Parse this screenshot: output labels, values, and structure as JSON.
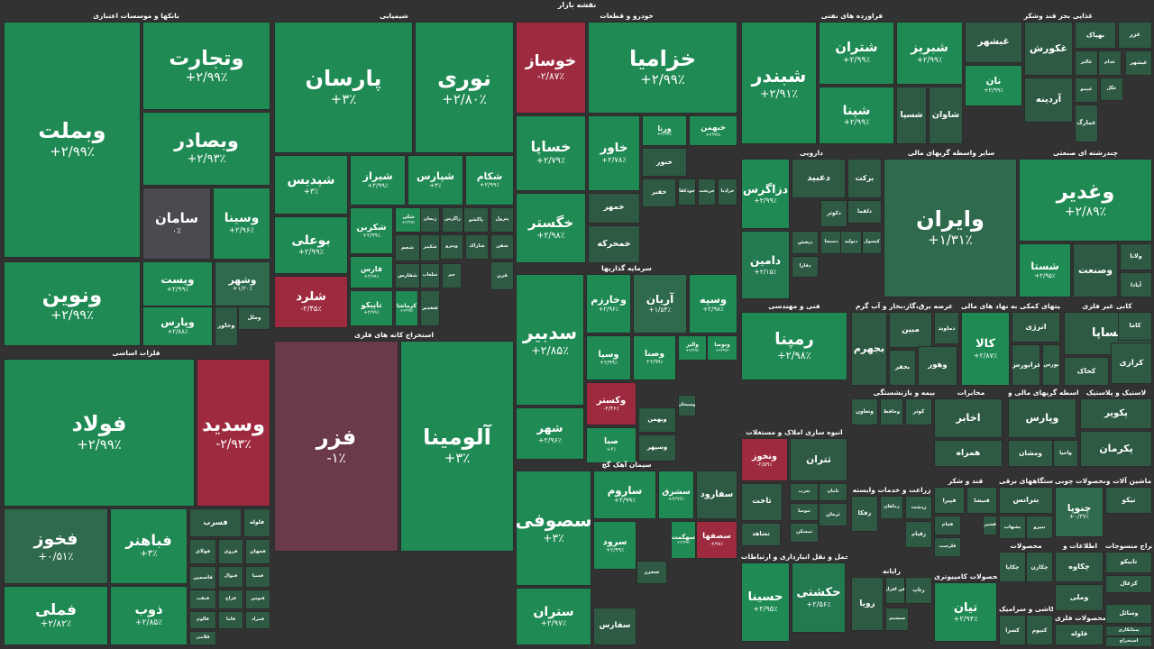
{
  "page": {
    "title": "نقشه بازار"
  },
  "colors": {
    "up_strong": "#1f8a54",
    "up_mid": "#237a50",
    "up_weak": "#2f6a4d",
    "flat": "#4a4a50",
    "down_weak": "#6b3a48",
    "down_strong": "#9e2a40",
    "empty": "#2e5a44"
  },
  "chart_data": {
    "type": "treemap",
    "title": "نقشه بازار",
    "value_unit": "%",
    "sectors": [
      {
        "name": "بانکها و موسسات اعتباری",
        "items": [
          {
            "symbol": "وبملت",
            "change": "+۲/۹۹٪"
          },
          {
            "symbol": "وتجارت",
            "change": "+۲/۹۹٪"
          },
          {
            "symbol": "وبصادر",
            "change": "+۲/۹۳٪"
          },
          {
            "symbol": "سامان",
            "change": "۰٪"
          },
          {
            "symbol": "وسینا",
            "change": "+۲/۹۶٪"
          },
          {
            "symbol": "ونوین",
            "change": "+۲/۹۹٪"
          },
          {
            "symbol": "ویست",
            "change": "+۲/۹۹٪"
          },
          {
            "symbol": "وشهر",
            "change": "+۱/۲۰٪"
          },
          {
            "symbol": "وپارس",
            "change": "+۲/۸۸٪"
          },
          {
            "symbol": "وخاور",
            "change": ""
          },
          {
            "symbol": "وملل",
            "change": ""
          }
        ]
      },
      {
        "name": "شیمیایی",
        "items": [
          {
            "symbol": "پارسان",
            "change": "+۳٪"
          },
          {
            "symbol": "نوری",
            "change": "+۲/۸۰٪"
          },
          {
            "symbol": "شپدیس",
            "change": "+۳٪"
          },
          {
            "symbol": "شیراز",
            "change": "+۲/۹۹٪"
          },
          {
            "symbol": "شپارس",
            "change": "+۳٪"
          },
          {
            "symbol": "شکام",
            "change": "+۲/۹۹٪"
          },
          {
            "symbol": "بوعلی",
            "change": "+۲/۹۹٪"
          },
          {
            "symbol": "شکربن",
            "change": "+۲/۹۹٪"
          },
          {
            "symbol": "شلی",
            "change": "+۲/۹۹٪"
          },
          {
            "symbol": "شلرد",
            "change": "-۲/۴۵٪"
          },
          {
            "symbol": "فارس",
            "change": "+۲/۹۹٪"
          },
          {
            "symbol": "تاپیکو",
            "change": "+۲/۹۹٪"
          },
          {
            "symbol": "کرماشا",
            "change": "+۲/۹۹٪"
          },
          {
            "symbol": "شغدیر",
            "change": ""
          },
          {
            "symbol": "شجم",
            "change": ""
          },
          {
            "symbol": "شفارس",
            "change": ""
          },
          {
            "symbol": "شلعاب",
            "change": ""
          },
          {
            "symbol": "شکبیر",
            "change": ""
          },
          {
            "symbol": "جم",
            "change": ""
          },
          {
            "symbol": "زاگرس",
            "change": ""
          },
          {
            "symbol": "وینرو",
            "change": ""
          },
          {
            "symbol": "پاکشو",
            "change": ""
          },
          {
            "symbol": "پترول",
            "change": ""
          },
          {
            "symbol": "شاراک",
            "change": ""
          },
          {
            "symbol": "شفن",
            "change": ""
          },
          {
            "symbol": "قرن",
            "change": ""
          },
          {
            "symbol": "زنجان",
            "change": ""
          }
        ]
      },
      {
        "name": "استخراج کانه های فلزی",
        "items": [
          {
            "symbol": "فزر",
            "change": "-۱٪"
          },
          {
            "symbol": "آلومینا",
            "change": "+۳٪"
          }
        ]
      },
      {
        "name": "فلزات اساسی",
        "items": [
          {
            "symbol": "فولاد",
            "change": "+۲/۹۹٪"
          },
          {
            "symbol": "وسدید",
            "change": "-۲/۹۳٪"
          },
          {
            "symbol": "فخوز",
            "change": "+۰/۵۱٪"
          },
          {
            "symbol": "فباهنر",
            "change": "+۳٪"
          },
          {
            "symbol": "فملی",
            "change": "+۲/۸۲٪"
          },
          {
            "symbol": "ذوب",
            "change": "+۲/۸۵٪"
          },
          {
            "symbol": "فسرب",
            "change": ""
          },
          {
            "symbol": "فلوله",
            "change": ""
          },
          {
            "symbol": "فولای",
            "change": ""
          },
          {
            "symbol": "فروی",
            "change": ""
          },
          {
            "symbol": "فجهان",
            "change": ""
          },
          {
            "symbol": "فاسمین",
            "change": ""
          },
          {
            "symbol": "فنوال",
            "change": ""
          },
          {
            "symbol": "فسپا",
            "change": ""
          },
          {
            "symbol": "فنفت",
            "change": ""
          },
          {
            "symbol": "فزاخ",
            "change": ""
          },
          {
            "symbol": "فتوس",
            "change": ""
          },
          {
            "symbol": "فالوم",
            "change": ""
          },
          {
            "symbol": "فاما",
            "change": ""
          },
          {
            "symbol": "فمراد",
            "change": ""
          },
          {
            "symbol": "فلامی",
            "change": ""
          }
        ]
      },
      {
        "name": "خودرو و قطعات",
        "items": [
          {
            "symbol": "خوساز",
            "change": "-۲/۸۷٪"
          },
          {
            "symbol": "خزامیا",
            "change": "+۲/۹۹٪"
          },
          {
            "symbol": "خساپا",
            "change": "+۲/۷۹٪"
          },
          {
            "symbol": "خاور",
            "change": "+۲/۷۸٪"
          },
          {
            "symbol": "ورنا",
            "change": "+۲/۹۹٪"
          },
          {
            "symbol": "خبهمن",
            "change": "+۲/۹۹٪"
          },
          {
            "symbol": "خگستر",
            "change": "+۲/۹۸٪"
          },
          {
            "symbol": "خنور",
            "change": ""
          },
          {
            "symbol": "خمهر",
            "change": ""
          },
          {
            "symbol": "خمحرکه",
            "change": ""
          },
          {
            "symbol": "خفنر",
            "change": ""
          },
          {
            "symbol": "خودکفا",
            "change": ""
          },
          {
            "symbol": "خریخت",
            "change": ""
          },
          {
            "symbol": "خرادیا",
            "change": ""
          }
        ]
      },
      {
        "name": "سرمایه گذاریها",
        "items": [
          {
            "symbol": "سدبیر",
            "change": "+۲/۸۵٪"
          },
          {
            "symbol": "وخارزم",
            "change": "+۲/۹۶٪"
          },
          {
            "symbol": "آریان",
            "change": "+۱/۵۴٪"
          },
          {
            "symbol": "وسپه",
            "change": "+۲/۹۸٪"
          },
          {
            "symbol": "شهر",
            "change": "+۲/۹۶٪"
          },
          {
            "symbol": "وسپا",
            "change": "+۲/۹۹٪"
          },
          {
            "symbol": "وصنا",
            "change": "+۲/۹۹٪"
          },
          {
            "symbol": "والبر",
            "change": "+۲/۹۹٪"
          },
          {
            "symbol": "وتوصا",
            "change": "+۲/۹۹٪"
          },
          {
            "symbol": "وکستر",
            "change": "-۲/۴۶٪"
          },
          {
            "symbol": "صبا",
            "change": "+۳٪"
          },
          {
            "symbol": "وسبحان",
            "change": ""
          },
          {
            "symbol": "وبهمن",
            "change": ""
          },
          {
            "symbol": "وسپهر",
            "change": ""
          }
        ]
      },
      {
        "name": "سیمان آهک گچ",
        "items": [
          {
            "symbol": "سصوفی",
            "change": "+۳٪"
          },
          {
            "symbol": "ساروم",
            "change": "+۲/۹۹٪"
          },
          {
            "symbol": "سشرق",
            "change": "+۲/۹۹٪"
          },
          {
            "symbol": "سفارود",
            "change": ""
          },
          {
            "symbol": "سصفها",
            "change": "-۲/۹۷٪"
          },
          {
            "symbol": "سرود",
            "change": "+۲/۹۹٪"
          },
          {
            "symbol": "سهگمت",
            "change": "+۲/۹۹٪"
          },
          {
            "symbol": "ستران",
            "change": "+۲/۹۷٪"
          },
          {
            "symbol": "سخزر",
            "change": ""
          },
          {
            "symbol": "سفارس",
            "change": ""
          }
        ]
      },
      {
        "name": "فراورده های نفتی",
        "items": [
          {
            "symbol": "شبندر",
            "change": "+۲/۹۱٪"
          },
          {
            "symbol": "شتران",
            "change": "+۲/۹۹٪"
          },
          {
            "symbol": "شبریز",
            "change": "+۲/۹۹٪"
          },
          {
            "symbol": "شپنا",
            "change": "+۲/۹۹٪"
          },
          {
            "symbol": "شسپا",
            "change": ""
          },
          {
            "symbol": "شاوان",
            "change": ""
          }
        ]
      },
      {
        "name": "غذایی بجز قند وشکر",
        "items": [
          {
            "symbol": "غبشهر",
            "change": ""
          },
          {
            "symbol": "غکورش",
            "change": ""
          },
          {
            "symbol": "بهپاک",
            "change": ""
          },
          {
            "symbol": "غزر",
            "change": ""
          },
          {
            "symbol": "نان",
            "change": "+۲/۹۹٪"
          },
          {
            "symbol": "آردینه",
            "change": ""
          },
          {
            "symbol": "غالبر",
            "change": ""
          },
          {
            "symbol": "غدام",
            "change": ""
          },
          {
            "symbol": "غپینو",
            "change": ""
          },
          {
            "symbol": "غگل",
            "change": ""
          },
          {
            "symbol": "غمارگ",
            "change": ""
          },
          {
            "symbol": "غبشهر",
            "change": ""
          }
        ]
      },
      {
        "name": "دارویی",
        "items": [
          {
            "symbol": "دزاگرس",
            "change": "+۲/۹۹٪"
          },
          {
            "symbol": "دعبید",
            "change": ""
          },
          {
            "symbol": "برکت",
            "change": ""
          },
          {
            "symbol": "دلقما",
            "change": ""
          },
          {
            "symbol": "دکوثر",
            "change": ""
          },
          {
            "symbol": "دامین",
            "change": "+۲/۱۵٪"
          },
          {
            "symbol": "دپخش",
            "change": ""
          },
          {
            "symbol": "دسبحا",
            "change": ""
          },
          {
            "symbol": "دتولید",
            "change": ""
          },
          {
            "symbol": "کپسول",
            "change": ""
          },
          {
            "symbol": "دفارا",
            "change": ""
          }
        ]
      },
      {
        "name": "سایر واسطه گریهای مالی",
        "items": [
          {
            "symbol": "وایران",
            "change": "+۱/۳۱٪"
          }
        ]
      },
      {
        "name": "چندرشته ای صنعتی",
        "items": [
          {
            "symbol": "وغدیر",
            "change": "+۲/۸۹٪"
          },
          {
            "symbol": "شستا",
            "change": "+۲/۹۵٪"
          },
          {
            "symbol": "وصنعت",
            "change": ""
          },
          {
            "symbol": "ولانا",
            "change": ""
          },
          {
            "symbol": "آبادا",
            "change": ""
          }
        ]
      },
      {
        "name": "فنی و مهندسی",
        "items": [
          {
            "symbol": "رمپنا",
            "change": "+۲/۹۸٪"
          }
        ]
      },
      {
        "name": "عرضه برق،گاز،بخار و آب گرم",
        "items": [
          {
            "symbol": "بجهرم",
            "change": ""
          },
          {
            "symbol": "مبین",
            "change": ""
          },
          {
            "symbol": "دماوند",
            "change": ""
          },
          {
            "symbol": "بجفر",
            "change": ""
          },
          {
            "symbol": "وهور",
            "change": ""
          }
        ]
      },
      {
        "name": "فعالیتهای کمکی به نهاد های مالی",
        "items": [
          {
            "symbol": "کالا",
            "change": "+۲/۸۷٪"
          },
          {
            "symbol": "انرژی",
            "change": ""
          },
          {
            "symbol": "فرابورس",
            "change": ""
          },
          {
            "symbol": "بورس",
            "change": ""
          }
        ]
      },
      {
        "name": "کانی غیر فلزی",
        "items": [
          {
            "symbol": "کساپا",
            "change": ""
          },
          {
            "symbol": "کخاک",
            "change": ""
          },
          {
            "symbol": "کرازی",
            "change": ""
          },
          {
            "symbol": "کاما",
            "change": ""
          }
        ]
      },
      {
        "name": "بیمه و بازنشستگی",
        "items": [
          {
            "symbol": "وتعاون",
            "change": ""
          },
          {
            "symbol": "وحافظ",
            "change": ""
          },
          {
            "symbol": "کوثر",
            "change": ""
          }
        ]
      },
      {
        "name": "مخابرات",
        "items": [
          {
            "symbol": "اخابر",
            "change": ""
          },
          {
            "symbol": "همراه",
            "change": ""
          }
        ]
      },
      {
        "name": "واسطه گریهای مالی و",
        "items": [
          {
            "symbol": "وپارس",
            "change": ""
          },
          {
            "symbol": "ومشان",
            "change": ""
          },
          {
            "symbol": "واحیا",
            "change": ""
          }
        ]
      },
      {
        "name": "لاستیک و پلاستیک",
        "items": [
          {
            "symbol": "پکویر",
            "change": ""
          },
          {
            "symbol": "پکرمان",
            "change": ""
          },
          {
            "symbol": "پلاسک",
            "change": ""
          }
        ]
      },
      {
        "name": "انبوه سازی املاک و مستغلات",
        "items": [
          {
            "symbol": "وتخوز",
            "change": "-۲/۵۹٪"
          },
          {
            "symbol": "ثتران",
            "change": ""
          },
          {
            "symbol": "ثاخت",
            "change": ""
          },
          {
            "symbol": "ثغرب",
            "change": ""
          },
          {
            "symbol": "ثامان",
            "change": ""
          },
          {
            "symbol": "ثنوسا",
            "change": ""
          },
          {
            "symbol": "ثمسکن",
            "change": ""
          },
          {
            "symbol": "ثشاهد",
            "change": ""
          },
          {
            "symbol": "ثرمان",
            "change": ""
          }
        ]
      },
      {
        "name": "زراعت و خدمات وابسته",
        "items": [
          {
            "symbol": "زفکا",
            "change": ""
          },
          {
            "symbol": "زماهان",
            "change": ""
          },
          {
            "symbol": "زدشت",
            "change": ""
          },
          {
            "symbol": "زقیام",
            "change": ""
          }
        ]
      },
      {
        "name": "حمل و نقل انبارداری و ارتباطات",
        "items": [
          {
            "symbol": "حکشتی",
            "change": "+۲/۵۶٪"
          },
          {
            "symbol": "حسینا",
            "change": "+۲/۹۵٪"
          }
        ]
      },
      {
        "name": "رایانه",
        "items": [
          {
            "symbol": "رتاپ",
            "change": ""
          },
          {
            "symbol": "فن افزار",
            "change": ""
          },
          {
            "symbol": "سیستم",
            "change": ""
          },
          {
            "symbol": "رویا",
            "change": ""
          }
        ]
      },
      {
        "name": "قند و شکر",
        "items": [
          {
            "symbol": "قپیرا",
            "change": ""
          },
          {
            "symbol": "قنیشا",
            "change": ""
          },
          {
            "symbol": "قشیر",
            "change": ""
          },
          {
            "symbol": "قجام",
            "change": ""
          },
          {
            "symbol": "قلرست",
            "change": ""
          }
        ]
      },
      {
        "name": "دستگاههای برقی",
        "items": [
          {
            "symbol": "بترانس",
            "change": ""
          },
          {
            "symbol": "بشهاب",
            "change": ""
          },
          {
            "symbol": "بنیرو",
            "change": ""
          }
        ]
      },
      {
        "name": "محصولات چوبی",
        "items": [
          {
            "symbol": "چنوپا",
            "change": "+۰/۳۷٪"
          }
        ]
      },
      {
        "name": "ماشین آلات و",
        "items": [
          {
            "symbol": "تیکو",
            "change": ""
          }
        ]
      },
      {
        "name": "محصولات کامپیوتری",
        "items": [
          {
            "symbol": "تیان",
            "change": "+۲/۹۴٪"
          }
        ]
      },
      {
        "name": "محصولات",
        "items": [
          {
            "symbol": "چکاپا",
            "change": ""
          },
          {
            "symbol": "چکارن",
            "change": ""
          }
        ]
      },
      {
        "name": "اطلاعات و",
        "items": [
          {
            "symbol": "چکاوه",
            "change": ""
          },
          {
            "symbol": "وملی",
            "change": ""
          }
        ]
      },
      {
        "name": "استخراج منسوجات",
        "items": [
          {
            "symbol": "تابیکو",
            "change": ""
          },
          {
            "symbol": "کزغال",
            "change": ""
          }
        ]
      },
      {
        "name": "کاشی و سرامیک",
        "items": [
          {
            "symbol": "کسرا",
            "change": ""
          },
          {
            "symbol": "کنیوم",
            "change": ""
          }
        ]
      },
      {
        "name": "محصولات فلزی",
        "items": [
          {
            "symbol": "فلوله",
            "change": ""
          },
          {
            "symbol": "وسائل",
            "change": ""
          },
          {
            "symbol": "پیمانکاری",
            "change": ""
          },
          {
            "symbol": "استخراج",
            "change": ""
          }
        ]
      }
    ]
  }
}
